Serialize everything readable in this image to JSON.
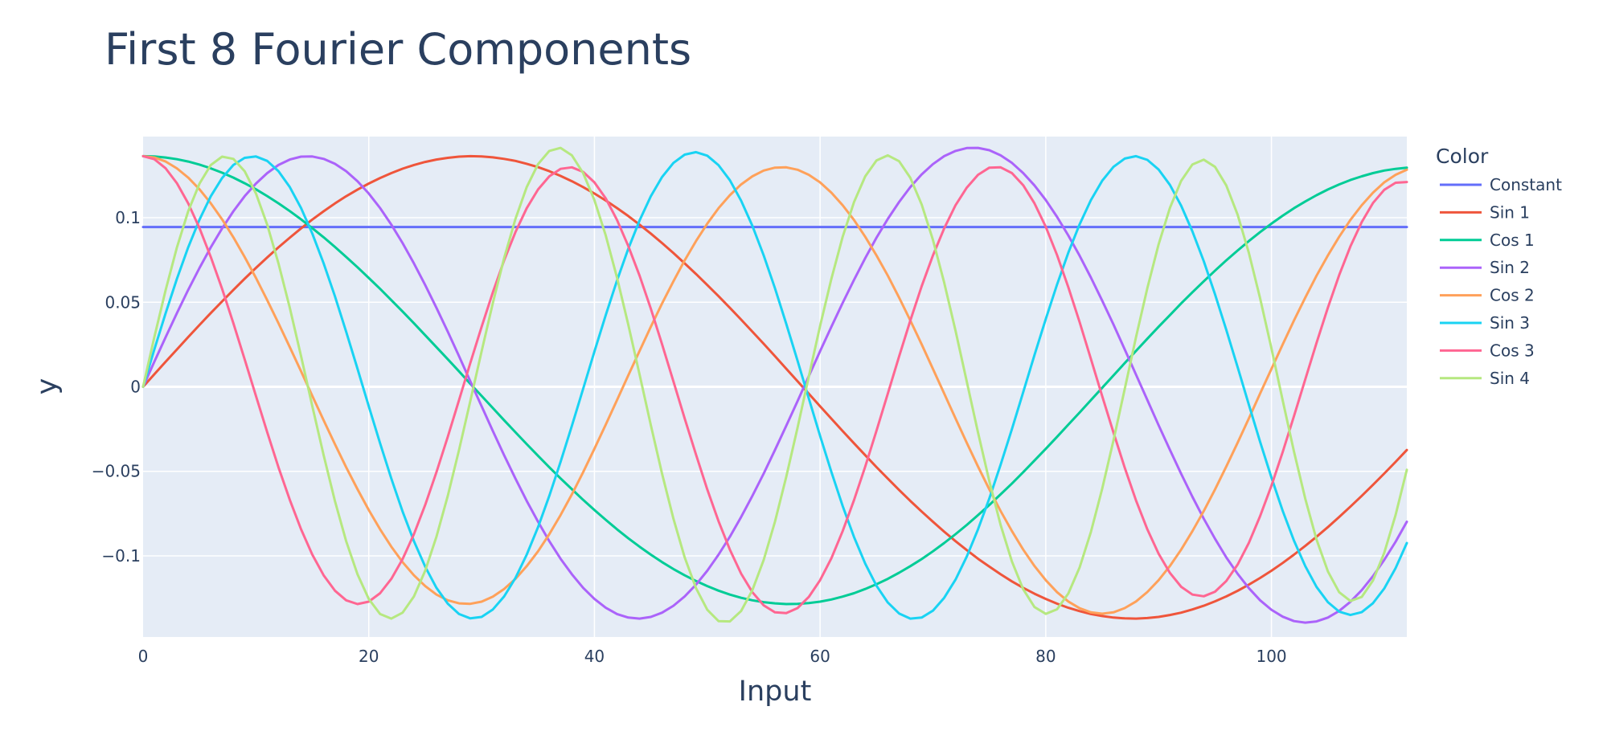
{
  "chart_data": {
    "type": "line",
    "title": "First 8 Fourier Components",
    "xlabel": "Input",
    "ylabel": "y",
    "xlim": [
      0,
      112
    ],
    "ylim": [
      -0.148,
      0.148
    ],
    "grid": true,
    "legend_title": "Color",
    "legend_placement": "right",
    "x_ticks": [
      {
        "value": 0,
        "label": "0"
      },
      {
        "value": 20,
        "label": "20"
      },
      {
        "value": 40,
        "label": "40"
      },
      {
        "value": 60,
        "label": "60"
      },
      {
        "value": 80,
        "label": "80"
      },
      {
        "value": 100,
        "label": "100"
      }
    ],
    "y_ticks": [
      {
        "value": -0.1,
        "label": "−0.1"
      },
      {
        "value": -0.05,
        "label": "−0.05"
      },
      {
        "value": 0,
        "label": "0"
      },
      {
        "value": 0.05,
        "label": "0.05"
      },
      {
        "value": 0.1,
        "label": "0.1"
      }
    ],
    "x": [
      0,
      1,
      2,
      3,
      4,
      5,
      6,
      7,
      8,
      9,
      10,
      11,
      12,
      13,
      14,
      15,
      16,
      17,
      18,
      19,
      20,
      21,
      22,
      23,
      24,
      25,
      26,
      27,
      28,
      29,
      30,
      31,
      32,
      33,
      34,
      35,
      36,
      37,
      38,
      39,
      40,
      41,
      42,
      43,
      44,
      45,
      46,
      47,
      48,
      49,
      50,
      51,
      52,
      53,
      54,
      55,
      56,
      57,
      58,
      59,
      60,
      61,
      62,
      63,
      64,
      65,
      66,
      67,
      68,
      69,
      70,
      71,
      72,
      73,
      74,
      75,
      76,
      77,
      78,
      79,
      80,
      81,
      82,
      83,
      84,
      85,
      86,
      87,
      88,
      89,
      90,
      91,
      92,
      93,
      94,
      95,
      96,
      97,
      98,
      99,
      100,
      101,
      102,
      103,
      104,
      105,
      106,
      107,
      108,
      109,
      110,
      111,
      112
    ],
    "series": [
      {
        "name": "Constant",
        "color": "#636efa",
        "values": [
          0.0945,
          0.0945,
          0.0945,
          0.0945,
          0.0945,
          0.0945,
          0.0945,
          0.0945,
          0.0945,
          0.0945,
          0.0945,
          0.0945,
          0.0945,
          0.0945,
          0.0945,
          0.0945,
          0.0945,
          0.0945,
          0.0945,
          0.0945,
          0.0945,
          0.0945,
          0.0945,
          0.0945,
          0.0945,
          0.0945,
          0.0945,
          0.0945,
          0.0945,
          0.0945,
          0.0945,
          0.0945,
          0.0945,
          0.0945,
          0.0945,
          0.0945,
          0.0945,
          0.0945,
          0.0945,
          0.0945,
          0.0945,
          0.0945,
          0.0945,
          0.0945,
          0.0945,
          0.0945,
          0.0945,
          0.0945,
          0.0945,
          0.0945,
          0.0945,
          0.0945,
          0.0945,
          0.0945,
          0.0945,
          0.0945,
          0.0945,
          0.0945,
          0.0945,
          0.0945,
          0.0945,
          0.0945,
          0.0945,
          0.0945,
          0.0945,
          0.0945,
          0.0945,
          0.0945,
          0.0945,
          0.0945,
          0.0945,
          0.0945,
          0.0945,
          0.0945,
          0.0945,
          0.0945,
          0.0945,
          0.0945,
          0.0945,
          0.0945,
          0.0945,
          0.0945,
          0.0945,
          0.0945,
          0.0945,
          0.0945,
          0.0945,
          0.0945,
          0.0945,
          0.0945,
          0.0945,
          0.0945,
          0.0945,
          0.0945,
          0.0945,
          0.0945,
          0.0945,
          0.0945,
          0.0945,
          0.0945,
          0.0945,
          0.0945,
          0.0945,
          0.0945,
          0.0945,
          0.0945,
          0.0945,
          0.0945,
          0.0945,
          0.0945,
          0.0945,
          0.0945,
          0.0945
        ]
      },
      {
        "name": "Sin 1",
        "color": "#ef553b",
        "values": [
          0,
          0.0074,
          0.0148,
          0.0221,
          0.0294,
          0.0366,
          0.0436,
          0.0505,
          0.0573,
          0.0639,
          0.0703,
          0.0765,
          0.0825,
          0.0882,
          0.0937,
          0.0989,
          0.1038,
          0.1084,
          0.1127,
          0.1166,
          0.1202,
          0.1235,
          0.1264,
          0.129,
          0.1312,
          0.133,
          0.1344,
          0.1354,
          0.1361,
          0.1364,
          0.1362,
          0.1357,
          0.1348,
          0.1336,
          0.1319,
          0.1299,
          0.1275,
          0.1247,
          0.1216,
          0.1181,
          0.1143,
          0.1102,
          0.1057,
          0.101,
          0.0959,
          0.0906,
          0.085,
          0.0791,
          0.073,
          0.0667,
          0.0602,
          0.0536,
          0.0467,
          0.0397,
          0.0326,
          0.0254,
          0.0181,
          0.0107,
          0.0033,
          -0.0041,
          -0.0115,
          -0.0189,
          -0.0262,
          -0.0334,
          -0.0405,
          -0.0475,
          -0.0543,
          -0.061,
          -0.0675,
          -0.0738,
          -0.0798,
          -0.0857,
          -0.0913,
          -0.0966,
          -0.1017,
          -0.1064,
          -0.1109,
          -0.1151,
          -0.1189,
          -0.1224,
          -0.1255,
          -0.1283,
          -0.1307,
          -0.1327,
          -0.1344,
          -0.1356,
          -0.1365,
          -0.137,
          -0.1371,
          -0.1368,
          -0.1361,
          -0.135,
          -0.1336,
          -0.1317,
          -0.1295,
          -0.1269,
          -0.124,
          -0.1207,
          -0.117,
          -0.1131,
          -0.1088,
          -0.1042,
          -0.0993,
          -0.0941,
          -0.0887,
          -0.083,
          -0.077,
          -0.0709,
          -0.0645,
          -0.058,
          -0.0513,
          -0.0444,
          -0.0374
        ]
      },
      {
        "name": "Cos 1",
        "color": "#00cc96",
        "values": [
          0.1364,
          0.1362,
          0.1356,
          0.1346,
          0.1332,
          0.1314,
          0.1292,
          0.1266,
          0.1237,
          0.1204,
          0.1168,
          0.1128,
          0.1085,
          0.1039,
          0.099,
          0.0938,
          0.0884,
          0.0827,
          0.0768,
          0.0707,
          0.0644,
          0.0579,
          0.0512,
          0.0445,
          0.0376,
          0.0305,
          0.0234,
          0.0163,
          0.0091,
          0.0018,
          -0.0054,
          -0.0126,
          -0.0198,
          -0.0269,
          -0.0339,
          -0.0408,
          -0.0476,
          -0.0542,
          -0.0606,
          -0.0669,
          -0.0729,
          -0.0787,
          -0.0843,
          -0.0896,
          -0.0946,
          -0.0993,
          -0.1037,
          -0.1078,
          -0.1115,
          -0.1149,
          -0.1179,
          -0.1206,
          -0.1229,
          -0.1248,
          -0.1263,
          -0.1274,
          -0.1281,
          -0.1285,
          -0.1284,
          -0.1279,
          -0.1271,
          -0.1258,
          -0.1241,
          -0.1221,
          -0.1196,
          -0.1168,
          -0.1136,
          -0.11,
          -0.1061,
          -0.1019,
          -0.0973,
          -0.0924,
          -0.0872,
          -0.0817,
          -0.0759,
          -0.0699,
          -0.0636,
          -0.0572,
          -0.0505,
          -0.0436,
          -0.0367,
          -0.0296,
          -0.0224,
          -0.0152,
          -0.0079,
          -0.0006,
          0.0067,
          0.014,
          0.0212,
          0.0284,
          0.0355,
          0.0424,
          0.0493,
          0.0559,
          0.0624,
          0.0687,
          0.0748,
          0.0806,
          0.0862,
          0.0915,
          0.0965,
          0.1012,
          0.1056,
          0.1096,
          0.1133,
          0.1167,
          0.1197,
          0.1223,
          0.1245,
          0.1264,
          0.1279,
          0.1289,
          0.1296
        ]
      },
      {
        "name": "Sin 2",
        "color": "#ab63fa",
        "values": [
          0,
          0.0148,
          0.0294,
          0.0436,
          0.0573,
          0.0703,
          0.0825,
          0.0937,
          0.1038,
          0.1127,
          0.1202,
          0.1264,
          0.1312,
          0.1344,
          0.1361,
          0.1362,
          0.1348,
          0.1319,
          0.1275,
          0.1216,
          0.1143,
          0.1057,
          0.0959,
          0.085,
          0.073,
          0.0602,
          0.0467,
          0.0326,
          0.0181,
          0.0033,
          -0.0115,
          -0.0262,
          -0.0405,
          -0.0543,
          -0.0675,
          -0.0798,
          -0.0913,
          -0.1017,
          -0.1109,
          -0.1189,
          -0.1255,
          -0.1307,
          -0.1344,
          -0.1365,
          -0.1371,
          -0.1361,
          -0.1336,
          -0.1295,
          -0.124,
          -0.117,
          -0.1088,
          -0.0993,
          -0.0887,
          -0.077,
          -0.0645,
          -0.0513,
          -0.0374,
          -0.0231,
          -0.0085,
          0.0063,
          0.021,
          0.0355,
          0.0496,
          0.0632,
          0.0761,
          0.0882,
          0.0993,
          0.1093,
          0.1181,
          0.1256,
          0.1317,
          0.1364,
          0.1395,
          0.1412,
          0.1413,
          0.1399,
          0.1369,
          0.1324,
          0.1264,
          0.1191,
          0.1104,
          0.1005,
          0.0895,
          0.0775,
          0.0646,
          0.051,
          0.0368,
          0.0221,
          0.0072,
          -0.0078,
          -0.0227,
          -0.0373,
          -0.0515,
          -0.0651,
          -0.078,
          -0.0899,
          -0.1009,
          -0.1106,
          -0.1191,
          -0.1263,
          -0.1319,
          -0.136,
          -0.1386,
          -0.1395,
          -0.1388,
          -0.1365,
          -0.1326,
          -0.1272,
          -0.1203,
          -0.112,
          -0.1024,
          -0.0917,
          -0.0798
        ]
      },
      {
        "name": "Cos 2",
        "color": "#ffa15a",
        "values": [
          0.1364,
          0.1356,
          0.1332,
          0.1292,
          0.1237,
          0.1168,
          0.1085,
          0.099,
          0.0884,
          0.0768,
          0.0644,
          0.0512,
          0.0376,
          0.0234,
          0.0091,
          -0.0054,
          -0.0198,
          -0.0339,
          -0.0476,
          -0.0606,
          -0.0729,
          -0.0843,
          -0.0946,
          -0.1037,
          -0.1115,
          -0.1179,
          -0.1229,
          -0.1263,
          -0.1281,
          -0.1284,
          -0.1271,
          -0.1241,
          -0.1196,
          -0.1136,
          -0.1061,
          -0.0973,
          -0.0872,
          -0.0759,
          -0.0636,
          -0.0505,
          -0.0367,
          -0.0224,
          -0.0079,
          0.0067,
          0.0212,
          0.0355,
          0.0493,
          0.0624,
          0.0748,
          0.0862,
          0.0965,
          0.1056,
          0.1133,
          0.1197,
          0.1245,
          0.1279,
          0.1296,
          0.1298,
          0.1284,
          0.1254,
          0.1209,
          0.1148,
          0.1074,
          0.0987,
          0.0887,
          0.0777,
          0.0657,
          0.0528,
          0.0392,
          0.0251,
          0.0106,
          -0.004,
          -0.0187,
          -0.0331,
          -0.0472,
          -0.0607,
          -0.0735,
          -0.0854,
          -0.0963,
          -0.106,
          -0.1144,
          -0.1215,
          -0.127,
          -0.131,
          -0.1334,
          -0.1342,
          -0.1334,
          -0.1309,
          -0.127,
          -0.1214,
          -0.1144,
          -0.106,
          -0.0963,
          -0.0854,
          -0.0735,
          -0.0607,
          -0.0472,
          -0.0331,
          -0.0187,
          -0.004,
          0.0106,
          0.0251,
          0.0392,
          0.0528,
          0.0657,
          0.0777,
          0.0887,
          0.0987,
          0.1074,
          0.1148,
          0.1209,
          0.1254,
          0.1284
        ]
      },
      {
        "name": "Sin 3",
        "color": "#19d3f3",
        "values": [
          0,
          0.0221,
          0.0436,
          0.0639,
          0.0825,
          0.0989,
          0.1127,
          0.1235,
          0.1312,
          0.1354,
          0.1362,
          0.1336,
          0.1275,
          0.1181,
          0.1057,
          0.0906,
          0.073,
          0.0536,
          0.0326,
          0.0107,
          -0.0115,
          -0.0334,
          -0.0543,
          -0.0738,
          -0.0913,
          -0.1064,
          -0.1189,
          -0.1283,
          -0.1344,
          -0.137,
          -0.1361,
          -0.1317,
          -0.124,
          -0.1131,
          -0.0993,
          -0.083,
          -0.0645,
          -0.0444,
          -0.0231,
          -0.0012,
          0.0208,
          0.0424,
          0.0628,
          0.0816,
          0.0984,
          0.1127,
          0.1241,
          0.1324,
          0.1373,
          0.1388,
          0.1367,
          0.1311,
          0.1222,
          0.1101,
          0.0952,
          0.0777,
          0.0583,
          0.0373,
          0.0154,
          -0.0069,
          -0.029,
          -0.0504,
          -0.0705,
          -0.0888,
          -0.1046,
          -0.1177,
          -0.1276,
          -0.1341,
          -0.1371,
          -0.1365,
          -0.1324,
          -0.1248,
          -0.1141,
          -0.1004,
          -0.0843,
          -0.066,
          -0.0461,
          -0.025,
          -0.0032,
          0.0187,
          0.0401,
          0.0605,
          0.0793,
          0.0961,
          0.1104,
          0.1218,
          0.1301,
          0.135,
          0.1364,
          0.1342,
          0.1285,
          0.1194,
          0.1071,
          0.0919,
          0.0743,
          0.0547,
          0.0337,
          0.0117,
          -0.0106,
          -0.0326,
          -0.0537,
          -0.0734,
          -0.091,
          -0.1061,
          -0.1184,
          -0.1274,
          -0.133,
          -0.135,
          -0.1333,
          -0.128,
          -0.1193,
          -0.1073,
          -0.0924
        ]
      },
      {
        "name": "Cos 3",
        "color": "#ff6692",
        "values": [
          0.1364,
          0.1346,
          0.1292,
          0.1204,
          0.1085,
          0.0938,
          0.0768,
          0.0579,
          0.0376,
          0.0163,
          -0.0054,
          -0.0269,
          -0.0476,
          -0.0669,
          -0.0843,
          -0.0993,
          -0.1115,
          -0.1206,
          -0.1263,
          -0.1285,
          -0.1271,
          -0.1221,
          -0.1136,
          -0.1019,
          -0.0872,
          -0.0699,
          -0.0505,
          -0.0296,
          -0.0079,
          0.014,
          0.0355,
          0.0559,
          0.0748,
          0.0915,
          0.1056,
          0.1167,
          0.1245,
          0.1289,
          0.1298,
          0.1271,
          0.1209,
          0.1114,
          0.0987,
          0.0833,
          0.0657,
          0.0462,
          0.0251,
          0.0032,
          -0.0187,
          -0.0401,
          -0.0607,
          -0.0795,
          -0.0963,
          -0.1105,
          -0.1215,
          -0.1293,
          -0.1334,
          -0.1339,
          -0.1309,
          -0.1243,
          -0.1144,
          -0.1014,
          -0.0854,
          -0.0671,
          -0.0472,
          -0.026,
          -0.004,
          0.0179,
          0.0392,
          0.0595,
          0.0777,
          0.0937,
          0.1074,
          0.1178,
          0.1254,
          0.1296,
          0.1298,
          0.1264,
          0.1192,
          0.1085,
          0.0946,
          0.0779,
          0.0589,
          0.0382,
          0.0165,
          -0.0054,
          -0.0271,
          -0.0479,
          -0.0672,
          -0.0843,
          -0.0987,
          -0.1101,
          -0.1183,
          -0.1229,
          -0.1239,
          -0.1212,
          -0.1149,
          -0.1052,
          -0.0923,
          -0.0765,
          -0.0585,
          -0.0386,
          -0.0174,
          0.0044,
          0.026,
          0.0468,
          0.066,
          0.083,
          0.0974,
          0.1087,
          0.1165,
          0.1207,
          0.1211
        ]
      },
      {
        "name": "Sin 4",
        "color": "#b6e880",
        "values": [
          0,
          0.0294,
          0.0573,
          0.0825,
          0.1038,
          0.1202,
          0.1312,
          0.1361,
          0.1348,
          0.1275,
          0.1143,
          0.0959,
          0.073,
          0.0467,
          0.0181,
          -0.0115,
          -0.0405,
          -0.0675,
          -0.0913,
          -0.1109,
          -0.1255,
          -0.1344,
          -0.1371,
          -0.1336,
          -0.124,
          -0.1088,
          -0.0887,
          -0.0645,
          -0.0374,
          -0.0085,
          0.021,
          0.0496,
          0.0761,
          0.0993,
          0.1181,
          0.1317,
          0.1395,
          0.1413,
          0.1369,
          0.1264,
          0.1104,
          0.0895,
          0.0646,
          0.0368,
          0.0072,
          -0.0227,
          -0.0515,
          -0.078,
          -0.1009,
          -0.1191,
          -0.1319,
          -0.1386,
          -0.1388,
          -0.1326,
          -0.1203,
          -0.1024,
          -0.0798,
          -0.0533,
          -0.0242,
          0.0061,
          0.0359,
          0.0639,
          0.0887,
          0.1092,
          0.1245,
          0.1339,
          0.1369,
          0.1334,
          0.1236,
          0.1078,
          0.0869,
          0.0616,
          0.0332,
          0.0031,
          -0.0271,
          -0.0559,
          -0.0817,
          -0.1034,
          -0.1198,
          -0.1303,
          -0.1343,
          -0.1316,
          -0.1223,
          -0.1068,
          -0.0859,
          -0.0604,
          -0.0317,
          -0.0013,
          0.0293,
          0.0583,
          0.0842,
          0.1058,
          0.1218,
          0.1315,
          0.1343,
          0.1301,
          0.1191,
          0.1018,
          0.0792,
          0.0523,
          0.0227,
          -0.0081,
          -0.0383,
          -0.0663,
          -0.0904,
          -0.1092,
          -0.1215,
          -0.1267,
          -0.1243,
          -0.1146,
          -0.0982,
          -0.0759,
          -0.0491
        ]
      }
    ]
  }
}
